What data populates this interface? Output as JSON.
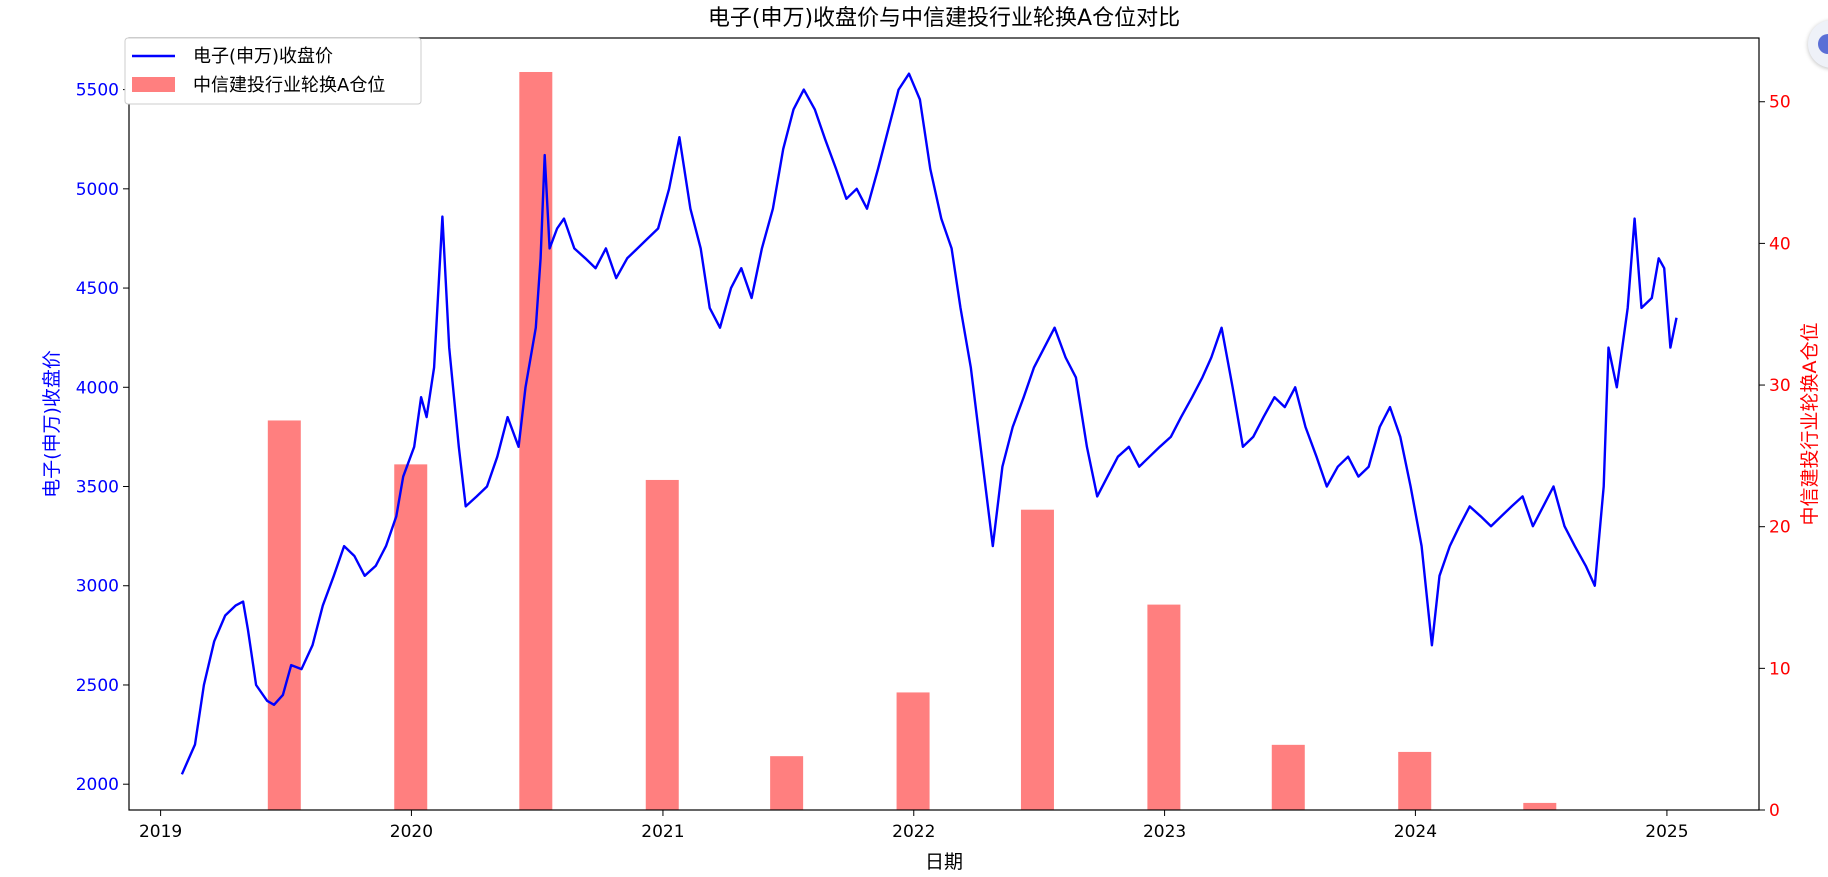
{
  "chart_data": {
    "type": "bar+line",
    "title": "电子(申万)收盘价与中信建投行业轮换A仓位对比",
    "xlabel": "日期",
    "ylabel_left": "电子(申万)收盘价",
    "ylabel_right": "中信建投行业轮换A仓位",
    "x_range": [
      "2018-11-16",
      "2025-05-15"
    ],
    "x_ticks": [
      "2019",
      "2020",
      "2021",
      "2022",
      "2023",
      "2024",
      "2025"
    ],
    "ylim_left": [
      1870,
      5760
    ],
    "yticks_left": [
      2000,
      2500,
      3000,
      3500,
      4000,
      4500,
      5000,
      5500
    ],
    "ylim_right": [
      0,
      54.5
    ],
    "yticks_right": [
      0,
      10,
      20,
      30,
      40,
      50
    ],
    "colors": {
      "line": "#0000ff",
      "bars": "#ff7f7f",
      "left_axis": "#0000ff",
      "right_axis": "#ff0000"
    },
    "legend": {
      "placement": "top-left",
      "entries": [
        "电子(申万)收盘价",
        "中信建投行业轮换A仓位"
      ]
    },
    "grid": false,
    "bar_series": {
      "name": "中信建投行业轮换A仓位",
      "dates": [
        "2019-06-30",
        "2019-12-31",
        "2020-06-30",
        "2020-12-31",
        "2021-06-30",
        "2021-12-31",
        "2022-06-30",
        "2022-12-31",
        "2023-06-30",
        "2023-12-31",
        "2024-06-30"
      ],
      "values": [
        27.5,
        24.4,
        52.1,
        23.3,
        3.8,
        8.3,
        21.2,
        14.5,
        4.6,
        4.1,
        0.5
      ]
    },
    "line_series": {
      "name": "电子(申万)收盘价",
      "dates": [
        "2019-02-01",
        "2019-02-20",
        "2019-03-05",
        "2019-03-20",
        "2019-04-05",
        "2019-04-20",
        "2019-05-01",
        "2019-05-08",
        "2019-05-20",
        "2019-06-05",
        "2019-06-15",
        "2019-06-28",
        "2019-07-10",
        "2019-07-25",
        "2019-08-10",
        "2019-08-25",
        "2019-09-10",
        "2019-09-25",
        "2019-10-10",
        "2019-10-25",
        "2019-11-10",
        "2019-11-25",
        "2019-12-10",
        "2019-12-20",
        "2020-01-05",
        "2020-01-15",
        "2020-01-23",
        "2020-02-03",
        "2020-02-15",
        "2020-02-25",
        "2020-03-10",
        "2020-03-20",
        "2020-04-05",
        "2020-04-20",
        "2020-05-05",
        "2020-05-20",
        "2020-06-05",
        "2020-06-15",
        "2020-06-30",
        "2020-07-07",
        "2020-07-13",
        "2020-07-20",
        "2020-07-31",
        "2020-08-10",
        "2020-08-25",
        "2020-09-10",
        "2020-09-25",
        "2020-10-10",
        "2020-10-25",
        "2020-11-10",
        "2020-11-25",
        "2020-12-10",
        "2020-12-25",
        "2021-01-10",
        "2021-01-25",
        "2021-02-10",
        "2021-02-25",
        "2021-03-10",
        "2021-03-25",
        "2021-04-10",
        "2021-04-25",
        "2021-05-10",
        "2021-05-25",
        "2021-06-10",
        "2021-06-25",
        "2021-07-10",
        "2021-07-25",
        "2021-08-10",
        "2021-08-25",
        "2021-09-10",
        "2021-09-25",
        "2021-10-10",
        "2021-10-25",
        "2021-11-10",
        "2021-11-25",
        "2021-12-10",
        "2021-12-25",
        "2022-01-10",
        "2022-01-25",
        "2022-02-10",
        "2022-02-25",
        "2022-03-10",
        "2022-03-25",
        "2022-04-10",
        "2022-04-26",
        "2022-05-10",
        "2022-05-25",
        "2022-06-10",
        "2022-06-25",
        "2022-07-10",
        "2022-07-25",
        "2022-08-10",
        "2022-08-25",
        "2022-09-10",
        "2022-09-25",
        "2022-10-10",
        "2022-10-25",
        "2022-11-10",
        "2022-11-25",
        "2022-12-10",
        "2022-12-25",
        "2023-01-10",
        "2023-01-25",
        "2023-02-10",
        "2023-02-25",
        "2023-03-10",
        "2023-03-25",
        "2023-04-10",
        "2023-04-25",
        "2023-05-10",
        "2023-05-25",
        "2023-06-10",
        "2023-06-25",
        "2023-07-10",
        "2023-07-25",
        "2023-08-10",
        "2023-08-25",
        "2023-09-10",
        "2023-09-25",
        "2023-10-10",
        "2023-10-25",
        "2023-11-10",
        "2023-11-25",
        "2023-12-10",
        "2023-12-25",
        "2024-01-10",
        "2024-01-25",
        "2024-02-05",
        "2024-02-20",
        "2024-03-05",
        "2024-03-20",
        "2024-04-05",
        "2024-04-20",
        "2024-05-05",
        "2024-05-20",
        "2024-06-05",
        "2024-06-20",
        "2024-07-05",
        "2024-07-20",
        "2024-08-05",
        "2024-08-20",
        "2024-09-05",
        "2024-09-18",
        "2024-10-01",
        "2024-10-08",
        "2024-10-20",
        "2024-11-05",
        "2024-11-15",
        "2024-11-25",
        "2024-12-10",
        "2024-12-20",
        "2024-12-28",
        "2025-01-06",
        "2025-01-15"
      ],
      "values": [
        2050,
        2200,
        2500,
        2720,
        2850,
        2900,
        2920,
        2780,
        2500,
        2420,
        2400,
        2450,
        2600,
        2580,
        2700,
        2900,
        3050,
        3200,
        3150,
        3050,
        3100,
        3200,
        3350,
        3550,
        3700,
        3950,
        3850,
        4100,
        4860,
        4200,
        3700,
        3400,
        3450,
        3500,
        3650,
        3850,
        3700,
        4000,
        4300,
        4650,
        5170,
        4700,
        4800,
        4850,
        4700,
        4650,
        4600,
        4700,
        4550,
        4650,
        4700,
        4750,
        4800,
        5000,
        5260,
        4900,
        4700,
        4400,
        4300,
        4500,
        4600,
        4450,
        4700,
        4900,
        5200,
        5400,
        5500,
        5400,
        5250,
        5100,
        4950,
        5000,
        4900,
        5100,
        5300,
        5500,
        5580,
        5450,
        5100,
        4850,
        4700,
        4400,
        4100,
        3650,
        3200,
        3600,
        3800,
        3950,
        4100,
        4200,
        4300,
        4150,
        4050,
        3700,
        3450,
        3550,
        3650,
        3700,
        3600,
        3650,
        3700,
        3750,
        3850,
        3950,
        4050,
        4150,
        4300,
        4000,
        3700,
        3750,
        3850,
        3950,
        3900,
        4000,
        3800,
        3650,
        3500,
        3600,
        3650,
        3550,
        3600,
        3800,
        3900,
        3750,
        3500,
        3200,
        2700,
        3050,
        3200,
        3300,
        3400,
        3350,
        3300,
        3350,
        3400,
        3450,
        3300,
        3400,
        3500,
        3300,
        3200,
        3100,
        3000,
        3500,
        4200,
        4000,
        4400,
        4850,
        4400,
        4450,
        4650,
        4600,
        4200,
        4350
      ]
    }
  }
}
